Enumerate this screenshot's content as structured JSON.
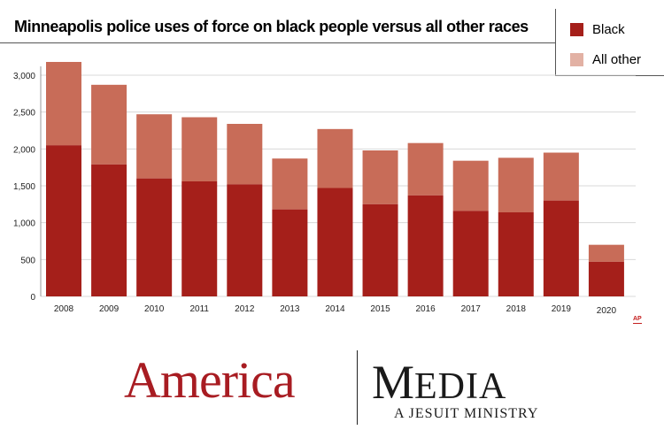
{
  "title": "Minneapolis police uses of force on black people versus all other races",
  "legend": {
    "black_label": "Black",
    "other_label": "All other"
  },
  "colors": {
    "black": "#a51f1a",
    "other": "#c86c58",
    "other_legend": "#e2b1a4",
    "grid": "#d8d8d8"
  },
  "chart_data": {
    "type": "bar",
    "stacked": true,
    "title": "Minneapolis police uses of force on black people versus all other races",
    "xlabel": "",
    "ylabel": "",
    "ylim": [
      0,
      3000
    ],
    "yticks": [
      "0",
      "500",
      "1,000",
      "1,500",
      "2,000",
      "2,500",
      "3,000"
    ],
    "categories": [
      "2008",
      "2009",
      "2010",
      "2011",
      "2012",
      "2013",
      "2014",
      "2015",
      "2016",
      "2017",
      "2018",
      "2019",
      "2020"
    ],
    "series": [
      {
        "name": "Black",
        "values": [
          2050,
          1790,
          1600,
          1560,
          1520,
          1180,
          1470,
          1250,
          1370,
          1160,
          1140,
          1300,
          470
        ]
      },
      {
        "name": "All other",
        "values": [
          1130,
          1080,
          870,
          870,
          820,
          690,
          800,
          730,
          710,
          680,
          740,
          650,
          230
        ]
      }
    ],
    "grid": true,
    "legend_position": "top-right"
  },
  "credit": "AP",
  "branding": {
    "america": "America",
    "media_initial": "M",
    "media_rest": "EDIA",
    "tagline": "A JESUIT MINISTRY"
  }
}
